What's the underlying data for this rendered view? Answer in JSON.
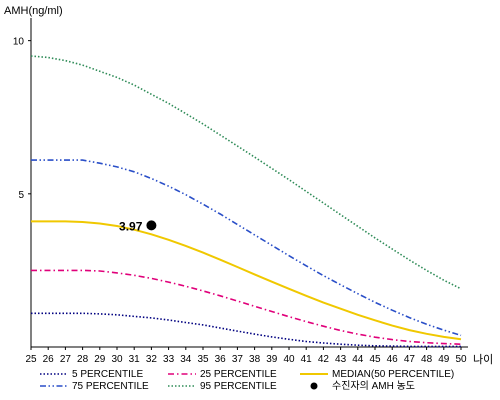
{
  "chart_data": {
    "type": "line",
    "ylabel": "AMH(ng/ml)",
    "xlabel": "나이",
    "x": [
      25,
      26,
      27,
      28,
      29,
      30,
      31,
      32,
      33,
      34,
      35,
      36,
      37,
      38,
      39,
      40,
      41,
      42,
      43,
      44,
      45,
      46,
      47,
      48,
      49,
      50
    ],
    "xlim": [
      25,
      50
    ],
    "ylim": [
      0,
      11
    ],
    "yticks": [
      5,
      10
    ],
    "grid": false,
    "legend_position": "bottom",
    "series": [
      {
        "name": "5 PERCENTILE",
        "color": "#000080",
        "dash": "dotted",
        "values": [
          1.1,
          1.1,
          1.1,
          1.1,
          1.08,
          1.05,
          1.0,
          0.95,
          0.88,
          0.8,
          0.72,
          0.62,
          0.52,
          0.42,
          0.33,
          0.25,
          0.18,
          0.13,
          0.09,
          0.06,
          0.04,
          0.03,
          0.02,
          0.02,
          0.02,
          0.02
        ]
      },
      {
        "name": "25 PERCENTILE",
        "color": "#e0007a",
        "dash": "dashdot",
        "values": [
          2.5,
          2.5,
          2.5,
          2.5,
          2.48,
          2.42,
          2.34,
          2.24,
          2.12,
          1.98,
          1.83,
          1.67,
          1.5,
          1.33,
          1.16,
          0.99,
          0.83,
          0.68,
          0.54,
          0.42,
          0.32,
          0.24,
          0.18,
          0.14,
          0.11,
          0.09
        ]
      },
      {
        "name": "MEDIAN(50 PERCENTILE)",
        "color": "#f0c800",
        "dash": "solid",
        "values": [
          4.1,
          4.1,
          4.1,
          4.08,
          4.03,
          3.95,
          3.83,
          3.68,
          3.5,
          3.3,
          3.08,
          2.85,
          2.61,
          2.37,
          2.13,
          1.9,
          1.67,
          1.45,
          1.25,
          1.05,
          0.87,
          0.7,
          0.55,
          0.43,
          0.33,
          0.25
        ]
      },
      {
        "name": "75 PERCENTILE",
        "color": "#2a4fc8",
        "dash": "dashdotdot",
        "values": [
          6.1,
          6.1,
          6.1,
          6.1,
          6.0,
          5.88,
          5.72,
          5.5,
          5.25,
          4.97,
          4.66,
          4.34,
          4.0,
          3.66,
          3.32,
          2.98,
          2.65,
          2.33,
          2.03,
          1.74,
          1.46,
          1.2,
          0.96,
          0.74,
          0.55,
          0.38
        ]
      },
      {
        "name": "95 PERCENTILE",
        "color": "#2e8b57",
        "dash": "dotted",
        "values": [
          9.5,
          9.45,
          9.35,
          9.2,
          9.0,
          8.8,
          8.55,
          8.25,
          7.95,
          7.62,
          7.28,
          6.92,
          6.56,
          6.2,
          5.83,
          5.46,
          5.08,
          4.7,
          4.32,
          3.94,
          3.56,
          3.2,
          2.84,
          2.5,
          2.18,
          1.9
        ]
      }
    ],
    "patient": {
      "name": "수진자의 AMH 농도",
      "x": 32,
      "y": 3.97,
      "label": "3.97",
      "color": "#000000"
    }
  }
}
